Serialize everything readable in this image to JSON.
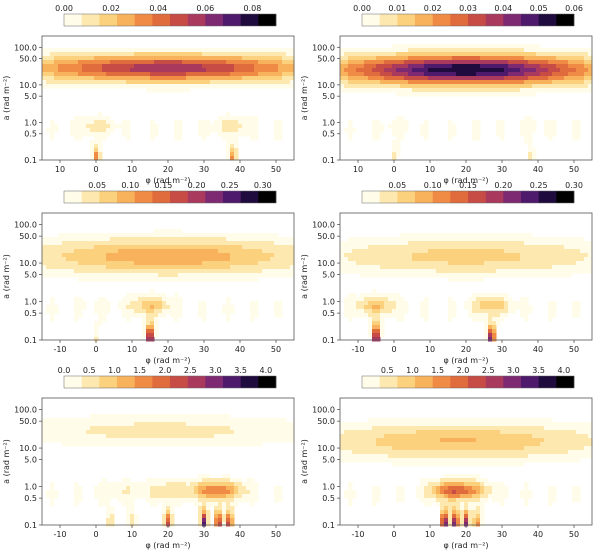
{
  "colormap": [
    "#fffdea",
    "#fde9b0",
    "#fbd17e",
    "#f8b25c",
    "#f08b45",
    "#e06b3c",
    "#c84c46",
    "#a93a5e",
    "#7d2a72",
    "#4e1a6c",
    "#1f0b3d",
    "#000000"
  ],
  "chart_data": [
    {
      "type": "heatmap",
      "panel": "top-left",
      "xlabel": "φ (rad m⁻²)",
      "ylabel": "a (rad m⁻²)",
      "xlim": [
        -15,
        55
      ],
      "xticks": [
        "10",
        "0",
        "10",
        "20",
        "30",
        "40",
        "50"
      ],
      "ylim_log": [
        0.1,
        200
      ],
      "yticks": [
        "100.0",
        "50.0",
        "10.0",
        "5.0",
        "1.0",
        "0.5",
        "0.1"
      ],
      "colorbar": {
        "min": 0.0,
        "max": 0.09,
        "ticks": [
          "0.00",
          "0.02",
          "0.04",
          "0.06",
          "0.08"
        ]
      },
      "features": {
        "band": {
          "x": 20,
          "y": 28,
          "sx": 38,
          "sy": 0.33,
          "amp": 0.7
        },
        "spikes": [
          {
            "x": 0,
            "amp": 0.45
          },
          {
            "x": 38,
            "amp": 0.45
          }
        ]
      }
    },
    {
      "type": "heatmap",
      "panel": "top-right",
      "xlabel": "φ (rad m⁻²)",
      "ylabel": "a (rad m⁻²)",
      "xlim": [
        -15,
        55
      ],
      "xticks": [
        "10",
        "0",
        "10",
        "20",
        "30",
        "40",
        "50"
      ],
      "ylim_log": [
        0.1,
        200
      ],
      "yticks": [
        "100.0",
        "50.0",
        "10.0",
        "5.0",
        "1.0",
        "0.5",
        "0.1"
      ],
      "colorbar": {
        "min": 0.0,
        "max": 0.06,
        "ticks": [
          "0.00",
          "0.01",
          "0.02",
          "0.03",
          "0.04",
          "0.05",
          "0.06"
        ]
      },
      "features": {
        "band": {
          "x": 20,
          "y": 25,
          "sx": 34,
          "sy": 0.36,
          "amp": 1.0
        },
        "spikes": [
          {
            "x": 0,
            "amp": 0.12
          },
          {
            "x": 38,
            "amp": 0.12
          }
        ]
      }
    },
    {
      "type": "heatmap",
      "panel": "middle-left",
      "xlabel": "φ (rad m⁻²)",
      "ylabel": "a (rad m⁻²)",
      "xlim": [
        -15,
        55
      ],
      "xticks": [
        "-10",
        "0",
        "10",
        "20",
        "30",
        "40",
        "50"
      ],
      "ylim_log": [
        0.1,
        200
      ],
      "yticks": [
        "100.0",
        "50.0",
        "10.0",
        "5.0",
        "1.0",
        "0.5",
        "0.1"
      ],
      "colorbar": {
        "min": 0.0,
        "max": 0.32,
        "ticks": [
          "0.05",
          "0.10",
          "0.15",
          "0.20",
          "0.25",
          "0.30"
        ]
      },
      "features": {
        "band": {
          "x": 20,
          "y": 15,
          "sx": 36,
          "sy": 0.42,
          "amp": 0.35
        },
        "spikes": [
          {
            "x": 15,
            "amp": 1.0
          },
          {
            "x": 0,
            "amp": 0.1
          }
        ]
      }
    },
    {
      "type": "heatmap",
      "panel": "middle-right",
      "xlabel": "φ (rad m⁻²)",
      "ylabel": "a (rad m⁻²)",
      "xlim": [
        -15,
        55
      ],
      "xticks": [
        "-10",
        "0",
        "10",
        "20",
        "30",
        "40",
        "50"
      ],
      "ylim_log": [
        0.1,
        200
      ],
      "yticks": [
        "100.0",
        "50.0",
        "10.0",
        "5.0",
        "1.0",
        "0.5",
        "0.1"
      ],
      "colorbar": {
        "min": 0.0,
        "max": 0.3,
        "ticks": [
          "0.05",
          "0.10",
          "0.15",
          "0.20",
          "0.25",
          "0.30"
        ]
      },
      "features": {
        "band": {
          "x": 20,
          "y": 15,
          "sx": 36,
          "sy": 0.42,
          "amp": 0.22
        },
        "spikes": [
          {
            "x": -5,
            "amp": 1.0
          },
          {
            "x": 27,
            "amp": 0.95
          }
        ]
      }
    },
    {
      "type": "heatmap",
      "panel": "bottom-left",
      "xlabel": "φ (rad m⁻²)",
      "ylabel": "a (rad m⁻²)",
      "xlim": [
        -15,
        55
      ],
      "xticks": [
        "-10",
        "0",
        "10",
        "20",
        "30",
        "40",
        "50"
      ],
      "ylim_log": [
        0.1,
        200
      ],
      "yticks": [
        "100.0",
        "50.0",
        "10.0",
        "5.0",
        "1.0",
        "0.5",
        "0.1"
      ],
      "colorbar": {
        "min": 0.0,
        "max": 4.2,
        "ticks": [
          "0.0",
          "0.5",
          "1.0",
          "1.5",
          "2.0",
          "2.5",
          "3.0",
          "3.5",
          "4.0"
        ]
      },
      "features": {
        "band": {
          "x": 18,
          "y": 28,
          "sx": 40,
          "sy": 0.36,
          "amp": 0.12
        },
        "spikes": [
          {
            "x": 20,
            "amp": 0.6
          },
          {
            "x": 30,
            "amp": 0.85
          },
          {
            "x": 34,
            "amp": 0.75
          },
          {
            "x": 37,
            "amp": 0.7
          },
          {
            "x": 4,
            "amp": 0.18
          },
          {
            "x": 10,
            "amp": 0.18
          }
        ]
      }
    },
    {
      "type": "heatmap",
      "panel": "bottom-right",
      "xlabel": "φ (rad m⁻²)",
      "ylabel": "a (rad m⁻²)",
      "xlim": [
        -15,
        55
      ],
      "xticks": [
        "-10",
        "0",
        "10",
        "20",
        "30",
        "40",
        "50"
      ],
      "ylim_log": [
        0.1,
        200
      ],
      "yticks": [
        "100.0",
        "50.0",
        "10.0",
        "5.0",
        "1.0",
        "0.5",
        "0.1"
      ],
      "colorbar": {
        "min": 0.0,
        "max": 4.2,
        "ticks": [
          "0.5",
          "1.0",
          "1.5",
          "2.0",
          "2.5",
          "3.0",
          "3.5",
          "4.0"
        ]
      },
      "features": {
        "band": {
          "x": 18,
          "y": 15,
          "sx": 36,
          "sy": 0.42,
          "amp": 0.28
        },
        "spikes": [
          {
            "x": 14,
            "amp": 0.95
          },
          {
            "x": 17,
            "amp": 0.85
          },
          {
            "x": 20,
            "amp": 0.75
          },
          {
            "x": 23,
            "amp": 0.45
          }
        ]
      }
    }
  ]
}
